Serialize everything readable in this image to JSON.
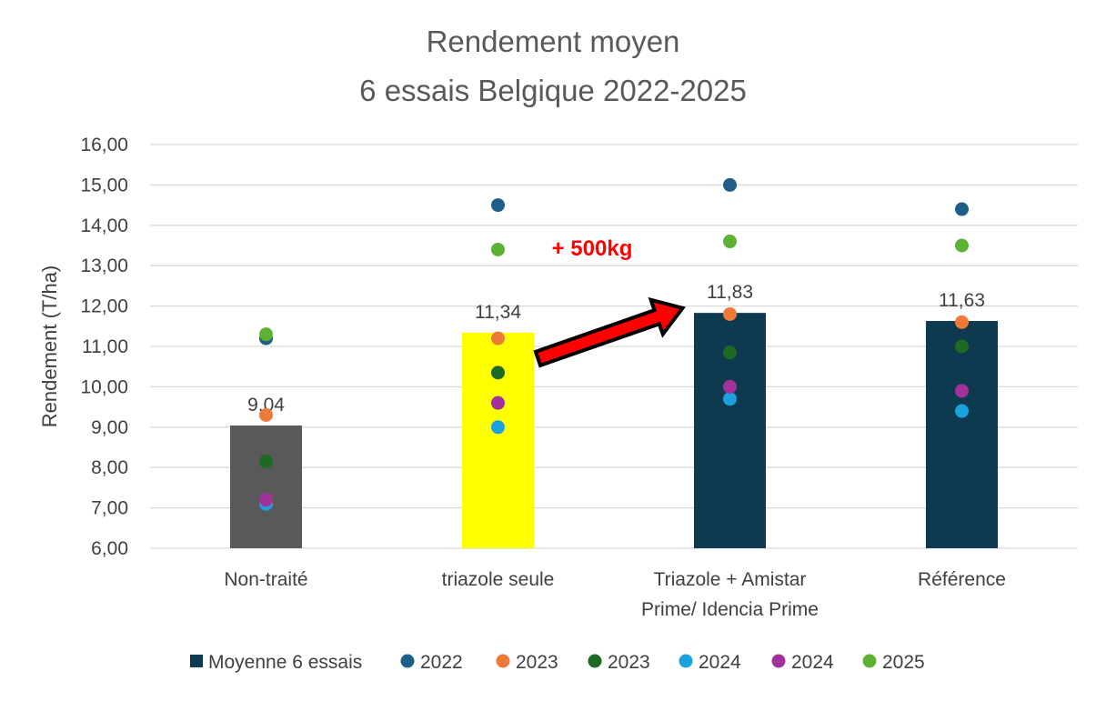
{
  "chart_data": {
    "type": "bar",
    "title": [
      "Rendement moyen",
      "6 essais Belgique 2022-2025"
    ],
    "ylabel": "Rendement (T/ha)",
    "xlabel": "",
    "ylim": [
      6,
      16
    ],
    "yticks": [
      "6,00",
      "7,00",
      "8,00",
      "9,00",
      "10,00",
      "11,00",
      "12,00",
      "13,00",
      "14,00",
      "15,00",
      "16,00"
    ],
    "grid": true,
    "legend_position": "bottom",
    "categories": [
      [
        "Non-traité"
      ],
      [
        "triazole seule"
      ],
      [
        "Triazole + Amistar",
        "Prime/  Idencia Prime"
      ],
      [
        "Référence"
      ]
    ],
    "bars": {
      "name": "Moyenne 6 essais",
      "values": [
        9.04,
        11.34,
        11.83,
        11.63
      ],
      "labels": [
        "9,04",
        "11,34",
        "11,83",
        "11,63"
      ],
      "colors": [
        "#595959",
        "#ffff00",
        "#0e3a4f",
        "#0e3a4f"
      ]
    },
    "series": [
      {
        "name": "2022",
        "color": "#1d5f86",
        "values": [
          11.2,
          14.5,
          15.0,
          14.4
        ]
      },
      {
        "name": "2023",
        "color": "#ee7a3a",
        "values": [
          9.3,
          11.2,
          11.8,
          11.6
        ]
      },
      {
        "name": "2023",
        "color": "#1d6b22",
        "values": [
          8.15,
          10.35,
          10.85,
          11.0
        ]
      },
      {
        "name": "2024",
        "color": "#1ba2de",
        "values": [
          7.1,
          9.0,
          9.7,
          9.4
        ]
      },
      {
        "name": "2024",
        "color": "#a2319b",
        "values": [
          7.2,
          9.6,
          10.0,
          9.9
        ]
      },
      {
        "name": "2025",
        "color": "#5db234",
        "values": [
          11.3,
          13.4,
          13.6,
          13.5
        ]
      }
    ],
    "annotation": {
      "text": "+ 500kg",
      "color": "#ff0000"
    }
  }
}
